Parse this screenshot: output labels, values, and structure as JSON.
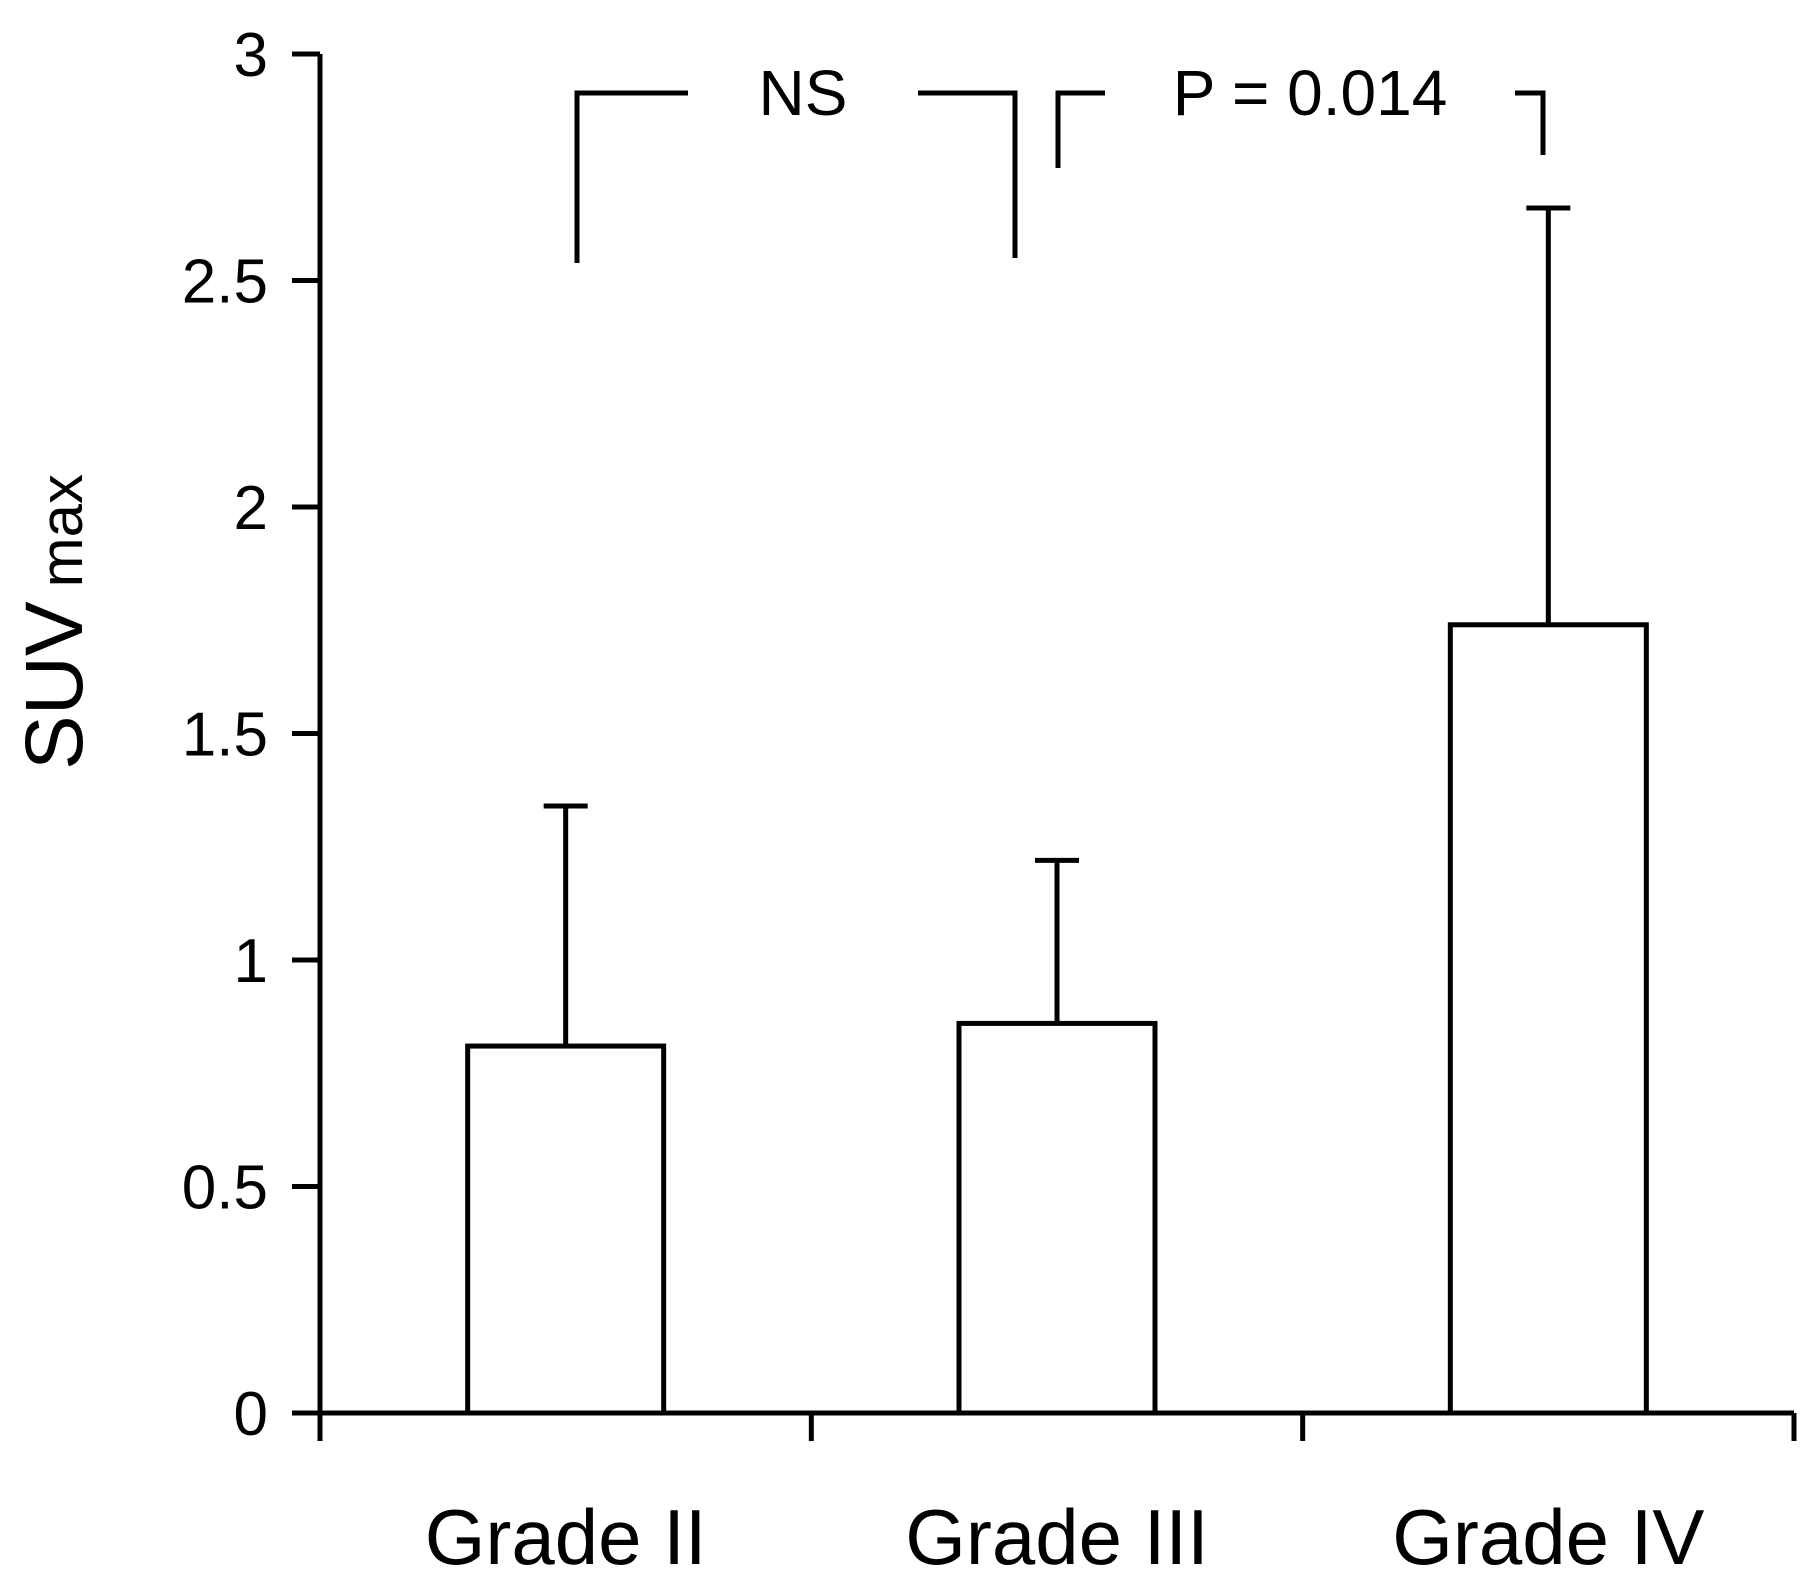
{
  "chart_data": {
    "type": "bar",
    "categories": [
      "Grade II",
      "Grade III",
      "Grade IV"
    ],
    "values": [
      0.81,
      0.86,
      1.74
    ],
    "error_upper": [
      1.34,
      1.22,
      2.66
    ],
    "title": "",
    "xlabel": "",
    "ylabel": "SUV",
    "ylabel_subscript": "max",
    "ylim": [
      0,
      3
    ],
    "yticks": [
      "0",
      "0.5",
      "1",
      "1.5",
      "2",
      "2.5",
      "3"
    ],
    "grid": false,
    "comparisons": [
      {
        "from": 0,
        "to": 1,
        "label": "NS"
      },
      {
        "from": 1,
        "to": 2,
        "label": "P = 0.014"
      }
    ],
    "colors": {
      "bar_fill": "#ffffff",
      "stroke": "#000000"
    }
  }
}
